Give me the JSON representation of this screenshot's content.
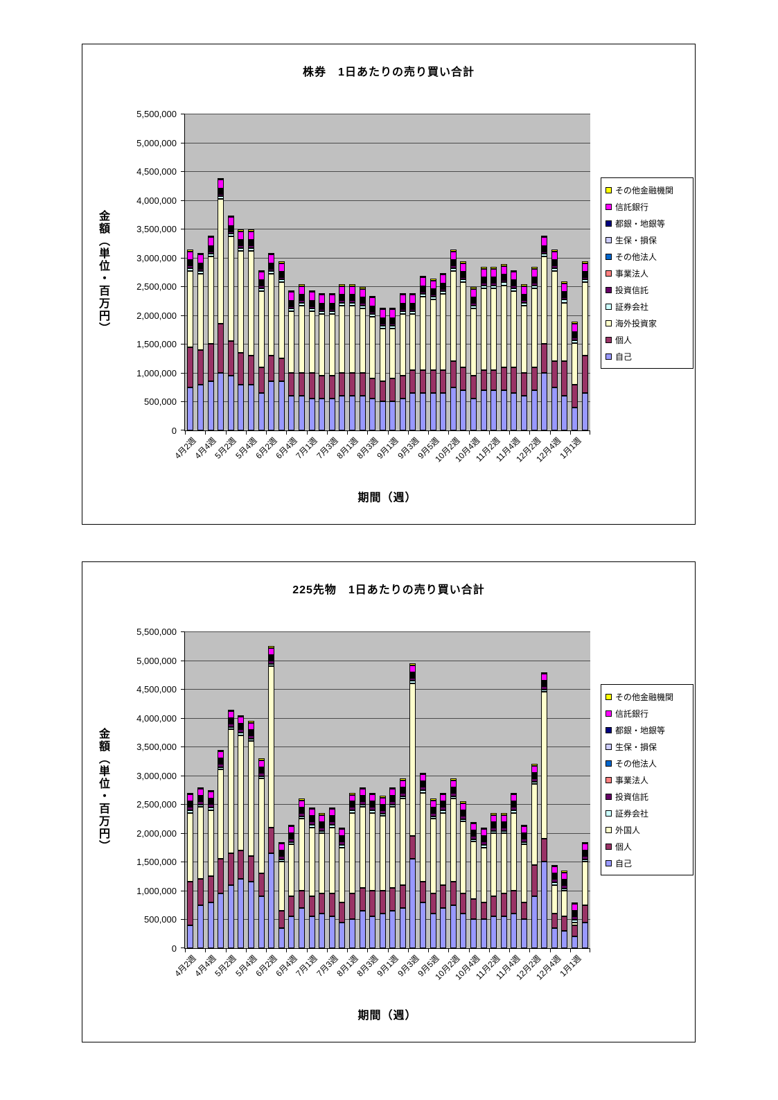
{
  "charts": [
    {
      "title": "株券　1日あたりの売り買い合計",
      "y_axis_title": "金額（単位・百万円）",
      "x_axis_title": "期間（週）",
      "chart_data": {
        "type": "bar",
        "stacked": true,
        "plot_bg": "#C0C0C0",
        "grid": true,
        "legend_position": "right",
        "ylim": [
          0,
          5500000
        ],
        "ytick_step": 500000,
        "y_tick_labels": [
          "0",
          "500,000",
          "1,000,000",
          "1,500,000",
          "2,000,000",
          "2,500,000",
          "3,000,000",
          "3,500,000",
          "4,000,000",
          "4,500,000",
          "5,000,000",
          "5,500,000"
        ],
        "n_bars": 40,
        "label_every": 2,
        "x_tick_labels": [
          "4月2週",
          "4月4週",
          "5月2週",
          "5月4週",
          "6月2週",
          "6月4週",
          "7月1週",
          "7月3週",
          "8月1週",
          "8月3週",
          "9月1週",
          "9月3週",
          "9月5週",
          "10月2週",
          "10月4週",
          "11月2週",
          "11月4週",
          "12月2週",
          "12月4週",
          "1月1週"
        ],
        "series": [
          {
            "name": "自己",
            "color": "#9999FF",
            "values": [
              750000,
              800000,
              850000,
              1000000,
              950000,
              800000,
              800000,
              650000,
              850000,
              850000,
              600000,
              600000,
              550000,
              550000,
              550000,
              600000,
              600000,
              600000,
              550000,
              500000,
              500000,
              550000,
              650000,
              650000,
              650000,
              650000,
              750000,
              700000,
              550000,
              700000,
              700000,
              700000,
              650000,
              600000,
              700000,
              1000000,
              750000,
              600000,
              400000,
              650000
            ]
          },
          {
            "name": "個人",
            "color": "#993366",
            "values": [
              700000,
              600000,
              650000,
              850000,
              600000,
              550000,
              500000,
              450000,
              450000,
              400000,
              400000,
              400000,
              450000,
              400000,
              400000,
              400000,
              400000,
              400000,
              350000,
              350000,
              400000,
              400000,
              400000,
              400000,
              400000,
              400000,
              450000,
              400000,
              400000,
              350000,
              350000,
              400000,
              450000,
              400000,
              400000,
              500000,
              450000,
              600000,
              400000,
              650000
            ]
          },
          {
            "name": "海外投資家",
            "color": "#FFFFCC",
            "values": [
              1320000,
              1320000,
              1520000,
              2170000,
              1820000,
              1770000,
              1820000,
              1320000,
              1420000,
              1320000,
              1070000,
              1170000,
              1070000,
              1070000,
              1070000,
              1170000,
              1170000,
              1120000,
              1070000,
              920000,
              870000,
              1070000,
              970000,
              1270000,
              1220000,
              1320000,
              1570000,
              1470000,
              1170000,
              1420000,
              1420000,
              1420000,
              1320000,
              1170000,
              1370000,
              1520000,
              1570000,
              1020000,
              720000,
              1270000
            ]
          },
          {
            "name": "証券会社",
            "color": "#CCFFFF",
            "value_all": 50000
          },
          {
            "name": "投資信託",
            "color": "#660066",
            "value_all": 40000
          },
          {
            "name": "事業法人",
            "color": "#FF8080",
            "value_all": 20000
          },
          {
            "name": "その他法人",
            "color": "#0066CC",
            "value_all": 15000
          },
          {
            "name": "生保・損保",
            "color": "#CCCCFF",
            "value_all": 15000
          },
          {
            "name": "都銀・地銀等",
            "color": "#000080",
            "value_all": 10000
          },
          {
            "name": "信託銀行",
            "color": "#FF00FF",
            "value_all": 150000
          },
          {
            "name": "その他金融機関",
            "color": "#FFFF00",
            "value_all": 30000
          }
        ]
      }
    },
    {
      "title": "225先物　1日あたりの売り買い合計",
      "y_axis_title": "金額（単位・百万円）",
      "x_axis_title": "期間（週）",
      "chart_data": {
        "type": "bar",
        "stacked": true,
        "plot_bg": "#C0C0C0",
        "grid": true,
        "legend_position": "right",
        "ylim": [
          0,
          5500000
        ],
        "ytick_step": 500000,
        "y_tick_labels": [
          "0",
          "500,000",
          "1,000,000",
          "1,500,000",
          "2,000,000",
          "2,500,000",
          "3,000,000",
          "3,500,000",
          "4,000,000",
          "4,500,000",
          "5,000,000",
          "5,500,000"
        ],
        "n_bars": 40,
        "label_every": 2,
        "x_tick_labels": [
          "4月2週",
          "4月4週",
          "5月2週",
          "5月4週",
          "6月2週",
          "6月4週",
          "7月1週",
          "7月3週",
          "8月1週",
          "8月3週",
          "9月1週",
          "9月3週",
          "9月5週",
          "10月2週",
          "10月4週",
          "11月2週",
          "11月4週",
          "12月2週",
          "12月4週",
          "1月1週"
        ],
        "series": [
          {
            "name": "自己",
            "color": "#9999FF",
            "values": [
              400000,
              750000,
              800000,
              950000,
              1100000,
              1200000,
              1150000,
              900000,
              1650000,
              350000,
              550000,
              700000,
              550000,
              600000,
              550000,
              450000,
              500000,
              650000,
              550000,
              600000,
              650000,
              700000,
              1550000,
              800000,
              600000,
              700000,
              750000,
              600000,
              500000,
              500000,
              550000,
              550000,
              600000,
              500000,
              900000,
              1500000,
              350000,
              300000,
              200000,
              450000
            ]
          },
          {
            "name": "個人",
            "color": "#993366",
            "values": [
              750000,
              450000,
              450000,
              600000,
              550000,
              500000,
              450000,
              400000,
              450000,
              300000,
              350000,
              300000,
              350000,
              350000,
              400000,
              350000,
              450000,
              400000,
              450000,
              400000,
              400000,
              400000,
              400000,
              350000,
              350000,
              400000,
              400000,
              350000,
              350000,
              300000,
              350000,
              400000,
              400000,
              300000,
              550000,
              400000,
              250000,
              250000,
              200000,
              300000
            ]
          },
          {
            "name": "外国人",
            "color": "#FFFFCC",
            "values": [
              1200000,
              1250000,
              1150000,
              1550000,
              2150000,
              2000000,
              2000000,
              1650000,
              2800000,
              850000,
              900000,
              1250000,
              1200000,
              1050000,
              1150000,
              950000,
              1400000,
              1400000,
              1350000,
              1300000,
              1400000,
              1500000,
              2650000,
              1550000,
              1300000,
              1250000,
              1450000,
              1250000,
              1000000,
              950000,
              1100000,
              1050000,
              1350000,
              1000000,
              1400000,
              2550000,
              500000,
              450000,
              50000,
              750000
            ]
          },
          {
            "name": "証券会社",
            "color": "#CCFFFF",
            "value_all": 40000
          },
          {
            "name": "投資信託",
            "color": "#660066",
            "value_all": 60000
          },
          {
            "name": "事業法人",
            "color": "#FF8080",
            "value_all": 15000
          },
          {
            "name": "その他法人",
            "color": "#0066CC",
            "value_all": 15000
          },
          {
            "name": "生保・損保",
            "color": "#CCCCFF",
            "value_all": 10000
          },
          {
            "name": "都銀・地銀等",
            "color": "#000080",
            "value_all": 10000
          },
          {
            "name": "信託銀行",
            "color": "#FF00FF",
            "value_all": 120000
          },
          {
            "name": "その他金融機関",
            "color": "#FFFF00",
            "value_all": 30000
          }
        ]
      }
    }
  ]
}
